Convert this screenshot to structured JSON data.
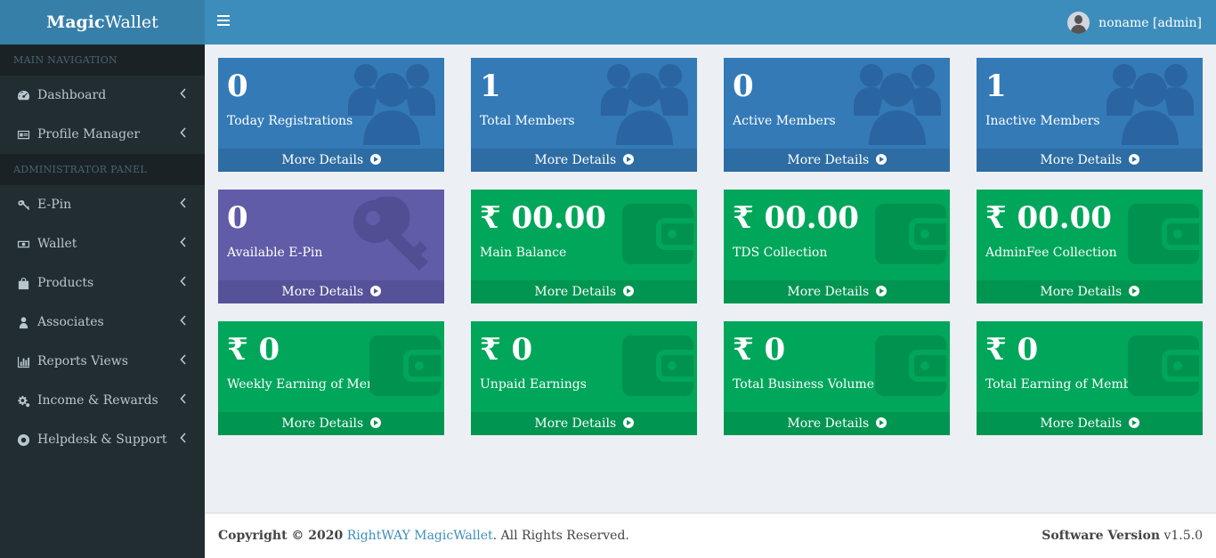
{
  "brand": {
    "bold": "Magic",
    "rest": "Wallet"
  },
  "user": {
    "name": "noname [admin]"
  },
  "sidebar": {
    "main_header": "MAIN NAVIGATION",
    "admin_header": "ADMINISTRATOR PANEL",
    "main_items": [
      {
        "label": "Dashboard",
        "icon": "dashboard-icon"
      },
      {
        "label": "Profile Manager",
        "icon": "id-card-icon"
      }
    ],
    "admin_items": [
      {
        "label": "E-Pin",
        "icon": "key-icon"
      },
      {
        "label": "Wallet",
        "icon": "money-icon"
      },
      {
        "label": "Products",
        "icon": "shopping-bag-icon"
      },
      {
        "label": "Associates",
        "icon": "user-icon"
      },
      {
        "label": "Reports Views",
        "icon": "bar-chart-icon"
      },
      {
        "label": "Income & Rewards",
        "icon": "gears-icon"
      },
      {
        "label": "Helpdesk & Support",
        "icon": "life-ring-icon"
      }
    ]
  },
  "boxes": [
    {
      "value": "0",
      "label": "Today Registrations",
      "footer": "More Details",
      "color": "#337ab7",
      "icon": "users-icon"
    },
    {
      "value": "1",
      "label": "Total Members",
      "footer": "More Details",
      "color": "#337ab7",
      "icon": "users-icon"
    },
    {
      "value": "0",
      "label": "Active Members",
      "footer": "More Details",
      "color": "#337ab7",
      "icon": "users-icon"
    },
    {
      "value": "1",
      "label": "Inactive Members",
      "footer": "More Details",
      "color": "#337ab7",
      "icon": "users-icon"
    },
    {
      "value": "0",
      "label": "Available E-Pin",
      "footer": "More Details",
      "color": "#605ca8",
      "icon": "key-icon"
    },
    {
      "value": "₹ 00.00",
      "label": "Main Balance",
      "footer": "More Details",
      "color": "#00a65a",
      "icon": "wallet-icon"
    },
    {
      "value": "₹ 00.00",
      "label": "TDS Collection",
      "footer": "More Details",
      "color": "#00a65a",
      "icon": "wallet-icon"
    },
    {
      "value": "₹ 00.00",
      "label": "AdminFee Collection",
      "footer": "More Details",
      "color": "#00a65a",
      "icon": "wallet-icon"
    },
    {
      "value": "₹ 0",
      "label": "Weekly Earning of Members",
      "footer": "More Details",
      "color": "#00a65a",
      "icon": "wallet-icon"
    },
    {
      "value": "₹ 0",
      "label": "Unpaid Earnings",
      "footer": "More Details",
      "color": "#00a65a",
      "icon": "wallet-icon"
    },
    {
      "value": "₹ 0",
      "label": "Total Business Volume",
      "footer": "More Details",
      "color": "#00a65a",
      "icon": "wallet-icon"
    },
    {
      "value": "₹ 0",
      "label": "Total Earning of Members",
      "footer": "More Details",
      "color": "#00a65a",
      "icon": "wallet-icon"
    }
  ],
  "footer": {
    "copyright_prefix": "Copyright © 2020",
    "company": "RightWAY MagicWallet",
    "suffix": ". All Rights Reserved.",
    "version_label": "Software Version",
    "version": "v1.5.0"
  }
}
